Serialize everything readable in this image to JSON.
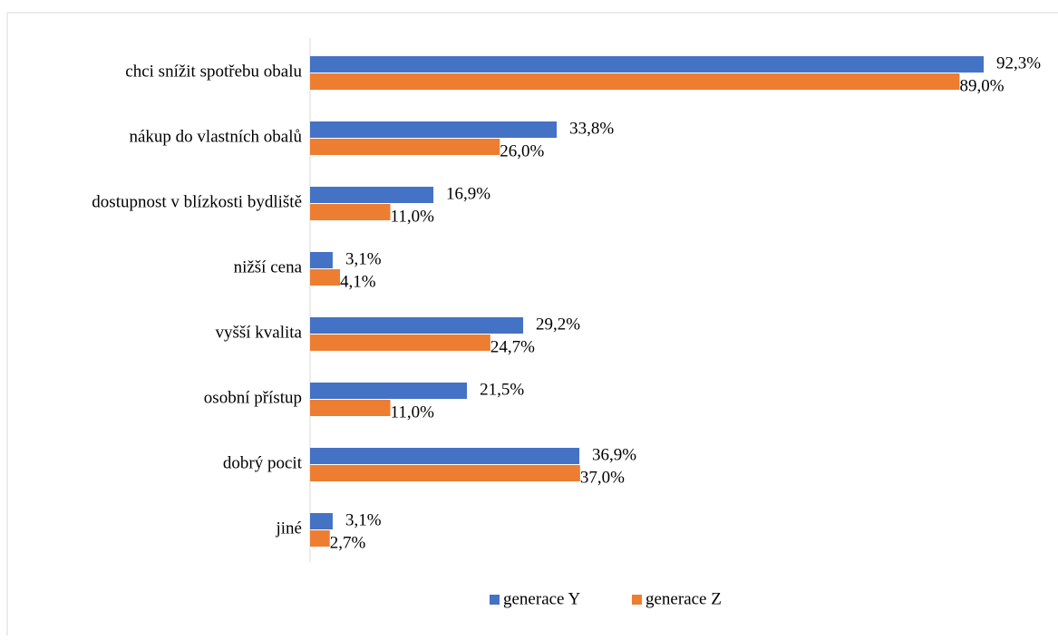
{
  "chart_data": {
    "type": "hbar",
    "categories": [
      "chci snížit spotřebu obalu",
      "nákup do vlastních obalů",
      "dostupnost v blízkosti bydliště",
      "nižší cena",
      "vyšší kvalita",
      "osobní přístup",
      "dobrý pocit",
      "jiné"
    ],
    "series": [
      {
        "name": "generace Y",
        "color": "#4472c4",
        "values": [
          92.3,
          33.8,
          16.9,
          3.1,
          29.2,
          21.5,
          36.9,
          3.1
        ],
        "value_labels": [
          "92,3%",
          "33,8%",
          "16,9%",
          "3,1%",
          "29,2%",
          "21,5%",
          "36,9%",
          "3,1%"
        ]
      },
      {
        "name": "generace Z",
        "color": "#ed7d31",
        "values": [
          89.0,
          26.0,
          11.0,
          4.1,
          24.7,
          11.0,
          37.0,
          2.7
        ],
        "value_labels": [
          "89,0%",
          "26,0%",
          "11,0%",
          "4,1%",
          "24,7%",
          "11,0%",
          "37,0%",
          "2,7%"
        ]
      }
    ],
    "xlim": [
      0,
      100
    ],
    "legend": "bottom"
  }
}
